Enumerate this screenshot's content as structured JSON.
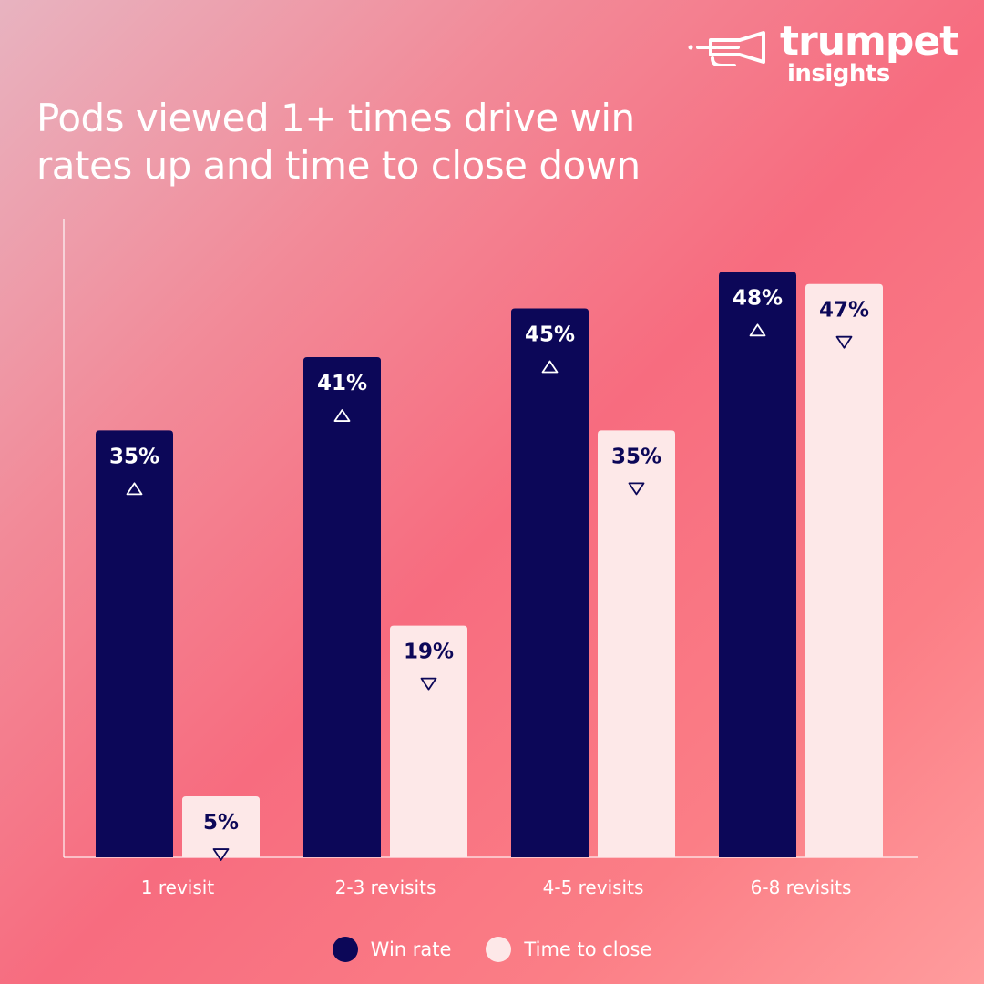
{
  "brand": {
    "name": "trumpet",
    "sub": "insights",
    "logo_icon": "trumpet-icon"
  },
  "title": "Pods viewed 1+ times drive win rates up and time to close down",
  "colors": {
    "win_rate": "#0c0758",
    "time_to_close": "#fde8e8",
    "text_light": "#ffffff",
    "text_dark": "#0c0758"
  },
  "chart_data": {
    "type": "bar",
    "title": "Pods viewed 1+ times drive win rates up and time to close down",
    "categories": [
      "1 revisit",
      "2-3 revisits",
      "4-5 revisits",
      "6-8 revisits"
    ],
    "series": [
      {
        "name": "Win rate",
        "values": [
          35,
          41,
          45,
          48
        ],
        "labels": [
          "35%",
          "41%",
          "45%",
          "48%"
        ],
        "direction": "up",
        "color": "#0c0758"
      },
      {
        "name": "Time to close",
        "values": [
          5,
          19,
          35,
          47
        ],
        "labels": [
          "5%",
          "19%",
          "35%",
          "47%"
        ],
        "direction": "down",
        "color": "#fde8e8"
      }
    ],
    "ylim": [
      0,
      50
    ],
    "xlabel": "",
    "ylabel": "",
    "grid": false,
    "legend_position": "bottom"
  },
  "legend": [
    {
      "label": "Win rate",
      "color": "#0c0758"
    },
    {
      "label": "Time to close",
      "color": "#fde8e8"
    }
  ]
}
